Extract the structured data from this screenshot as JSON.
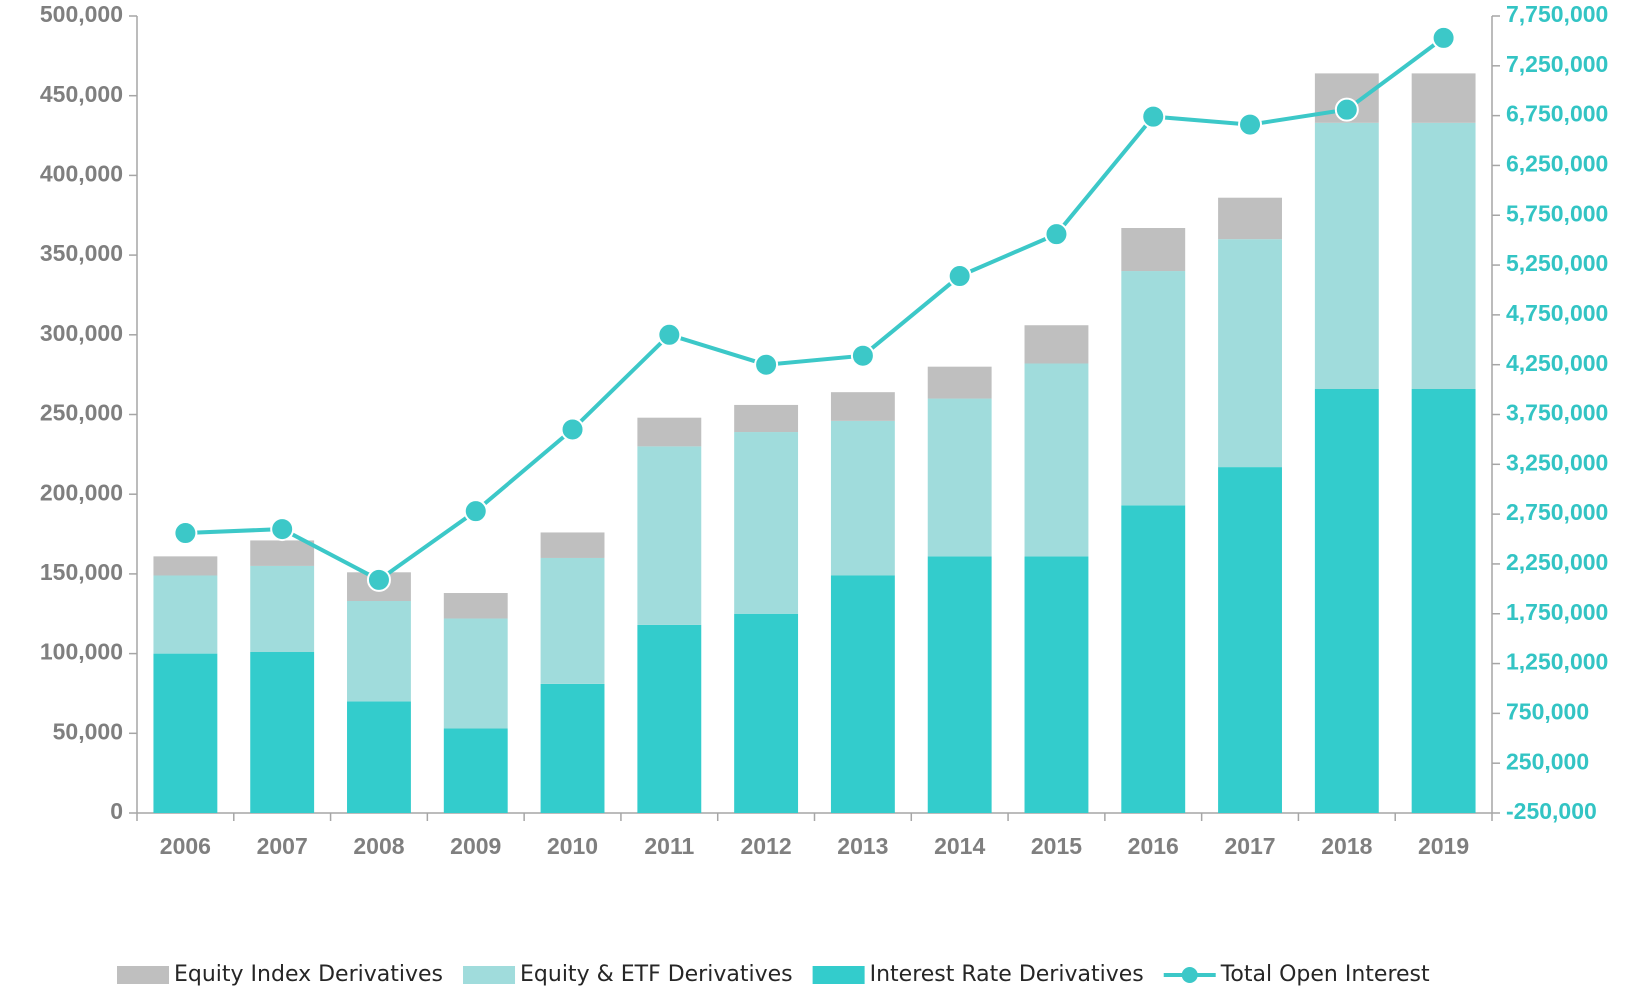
{
  "chart_data": {
    "type": "bar",
    "categories": [
      "2006",
      "2007",
      "2008",
      "2009",
      "2010",
      "2011",
      "2012",
      "2013",
      "2014",
      "2015",
      "2016",
      "2017",
      "2018",
      "2019"
    ],
    "stacked": true,
    "series": [
      {
        "name": "Equity Index Derivatives",
        "color": "#bfbfbf",
        "values": [
          12000,
          16000,
          18000,
          16000,
          16000,
          18000,
          17000,
          18000,
          20000,
          24000,
          27000,
          26000,
          31000,
          31000
        ]
      },
      {
        "name": "Equity & ETF Derivatives",
        "color": "#a0dcdc",
        "values": [
          49000,
          54000,
          63000,
          69000,
          79000,
          112000,
          114000,
          97000,
          99000,
          121000,
          147000,
          143000,
          167000,
          167000
        ]
      },
      {
        "name": "Interest Rate Derivatives",
        "color": "#33cccc",
        "values": [
          100000,
          101000,
          70000,
          53000,
          81000,
          118000,
          125000,
          149000,
          161000,
          161000,
          193000,
          217000,
          266000,
          266000
        ]
      },
      {
        "name": "Total Open Interest",
        "color": "#3cc8c8",
        "type": "line",
        "axis": "y2",
        "values": [
          2560000,
          2600000,
          2090000,
          2780000,
          3600000,
          4550000,
          4250000,
          4340000,
          5140000,
          5560000,
          6740000,
          6660000,
          6810000,
          7530000
        ]
      }
    ],
    "ylim": [
      0,
      500000
    ],
    "yticks": [
      0,
      {
        "value": 50000,
        "label": "50,000"
      },
      {
        "value": 100000,
        "label": "100,000"
      },
      {
        "value": 150000,
        "label": "150,000"
      },
      {
        "value": 200000,
        "label": "200,000"
      },
      {
        "value": 250000,
        "label": "250,000"
      },
      {
        "value": 300000,
        "label": "300,000"
      },
      {
        "value": 350000,
        "label": "350,000"
      },
      {
        "value": 400000,
        "label": "400,000"
      },
      {
        "value": 450000,
        "label": "450,000"
      },
      {
        "value": 500000,
        "label": "500,000"
      }
    ],
    "y2lim": [
      -250000,
      7750000
    ],
    "y2ticks": [
      {
        "value": -250000,
        "label": "-250,000"
      },
      {
        "value": 250000,
        "label": "250,000"
      },
      {
        "value": 750000,
        "label": "750,000"
      },
      {
        "value": 1250000,
        "label": "1,250,000"
      },
      {
        "value": 1750000,
        "label": "1,750,000"
      },
      {
        "value": 2250000,
        "label": "2,250,000"
      },
      {
        "value": 2750000,
        "label": "2,750,000"
      },
      {
        "value": 3250000,
        "label": "3,250,000"
      },
      {
        "value": 3750000,
        "label": "3,750,000"
      },
      {
        "value": 4250000,
        "label": "4,250,000"
      },
      {
        "value": 4750000,
        "label": "4,750,000"
      },
      {
        "value": 5250000,
        "label": "5,250,000"
      },
      {
        "value": 5750000,
        "label": "5,750,000"
      },
      {
        "value": 6250000,
        "label": "6,250,000"
      },
      {
        "value": 6750000,
        "label": "6,750,000"
      },
      {
        "value": 7250000,
        "label": "7,250,000"
      },
      {
        "value": 7750000,
        "label": "7,750,000"
      }
    ],
    "grid": false,
    "legend": "bottom"
  }
}
